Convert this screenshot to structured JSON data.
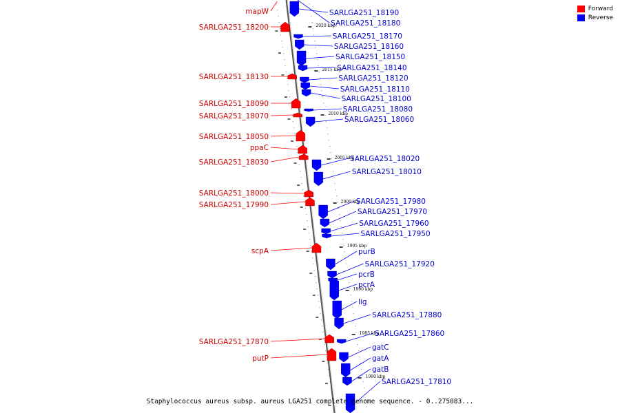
{
  "legend": {
    "forward": {
      "label": "Forward",
      "color": "#ff0000"
    },
    "reverse": {
      "label": "Reverse",
      "color": "#0000ff"
    }
  },
  "caption": "Staphylococcus aureus subsp. aureus LGA251 complete genome sequence. - 0..275083...",
  "ticks": [
    "2020 kbp",
    "2015 kbp",
    "2010 kbp",
    "2005 kbp",
    "2000 kbp",
    "1995 kbp",
    "1990 kbp",
    "1985 kbp",
    "1980 kbp"
  ],
  "forward_genes": [
    "mapW",
    "SARLGA251_18200",
    "SARLGA251_18130",
    "SARLGA251_18090",
    "SARLGA251_18070",
    "SARLGA251_18050",
    "ppaC",
    "SARLGA251_18030",
    "SARLGA251_18000",
    "SARLGA251_17990",
    "scpA",
    "SARLGA251_17870",
    "putP"
  ],
  "reverse_genes": [
    "SARLGA251_18190",
    "SARLGA251_18180",
    "SARLGA251_18170",
    "SARLGA251_18160",
    "SARLGA251_18150",
    "SARLGA251_18140",
    "SARLGA251_18120",
    "SARLGA251_18110",
    "SARLGA251_18100",
    "SARLGA251_18080",
    "SARLGA251_18060",
    "SARLGA251_18020",
    "SARLGA251_18010",
    "SARLGA251_17980",
    "SARLGA251_17970",
    "SARLGA251_17960",
    "SARLGA251_17950",
    "purB",
    "SARLGA251_17920",
    "pcrB",
    "pcrA",
    "lig",
    "SARLGA251_17880",
    "SARLGA251_17860",
    "gatC",
    "gatA",
    "gatB",
    "SARLGA251_17810"
  ]
}
